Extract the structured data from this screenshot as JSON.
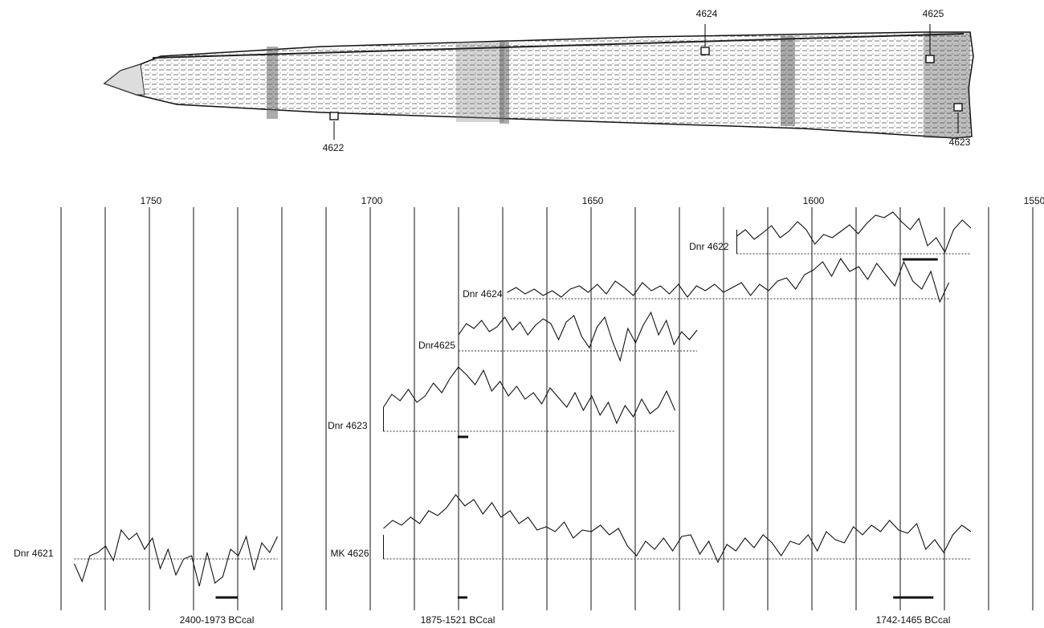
{
  "boat": {
    "samples": [
      {
        "label": "4622"
      },
      {
        "label": "4624"
      },
      {
        "label": "4625"
      },
      {
        "label": "4623"
      }
    ]
  },
  "chart_data": {
    "type": "line",
    "xlim": [
      1770,
      1550
    ],
    "xticks": [
      1750,
      1700,
      1650,
      1600,
      1550
    ],
    "gridlines": [
      1770,
      1760,
      1750,
      1740,
      1730,
      1720,
      1710,
      1700,
      1690,
      1680,
      1670,
      1660,
      1650,
      1640,
      1630,
      1620,
      1610,
      1600,
      1590,
      1580,
      1570,
      1560,
      1550
    ],
    "series": [
      {
        "name": "Dnr 4622",
        "start": 1617,
        "end": 1564,
        "values": [
          22,
          30,
          18,
          26,
          35,
          20,
          28,
          40,
          30,
          12,
          24,
          20,
          28,
          36,
          25,
          38,
          48,
          45,
          52,
          40,
          30,
          44,
          10,
          20,
          2,
          30,
          42,
          32
        ],
        "bars": [
          [
            1579.5,
            1571.5
          ]
        ]
      },
      {
        "name": "Dnr 4624",
        "start": 1669,
        "end": 1569,
        "values": [
          8,
          14,
          6,
          12,
          4,
          10,
          2,
          12,
          16,
          8,
          18,
          6,
          22,
          14,
          4,
          20,
          10,
          16,
          6,
          18,
          2,
          16,
          10,
          18,
          8,
          14,
          20,
          4,
          18,
          10,
          22,
          26,
          12,
          30,
          36,
          46,
          28,
          50,
          34,
          40,
          24,
          44,
          30,
          16,
          46,
          22,
          12,
          34,
          -4,
          20
        ],
        "bars": []
      },
      {
        "name": "Dnr4625",
        "start": 1680,
        "end": 1626,
        "values": [
          20,
          34,
          28,
          38,
          24,
          30,
          42,
          26,
          36,
          20,
          32,
          40,
          34,
          14,
          36,
          44,
          18,
          4,
          30,
          42,
          12,
          -12,
          28,
          10,
          32,
          48,
          20,
          38,
          8,
          24,
          14,
          26
        ],
        "bars": []
      },
      {
        "name": "Dnr 4623",
        "start": 1697,
        "end": 1631,
        "values": [
          30,
          46,
          38,
          52,
          36,
          44,
          60,
          48,
          66,
          80,
          70,
          58,
          76,
          50,
          62,
          44,
          56,
          40,
          48,
          34,
          54,
          42,
          30,
          48,
          26,
          44,
          20,
          36,
          10,
          32,
          18,
          40,
          22,
          30,
          50,
          26
        ],
        "bars": [
          [
            1680.2,
            1677.8
          ]
        ]
      },
      {
        "name": "MK 4626",
        "start": 1697,
        "end": 1564,
        "values": [
          38,
          48,
          42,
          52,
          44,
          60,
          54,
          64,
          80,
          66,
          74,
          56,
          70,
          52,
          60,
          44,
          52,
          36,
          40,
          34,
          46,
          26,
          36,
          34,
          42,
          30,
          38,
          16,
          4,
          22,
          12,
          26,
          10,
          28,
          30,
          6,
          22,
          -4,
          18,
          10,
          26,
          14,
          30,
          20,
          4,
          22,
          18,
          30,
          10,
          34,
          24,
          20,
          40,
          30,
          42,
          34,
          48,
          36,
          32,
          44,
          12,
          24,
          8,
          30,
          42,
          34
        ],
        "bars": [
          [
            1680.2,
            1678
          ],
          [
            1581.6,
            1572.5
          ]
        ]
      },
      {
        "name": "Dnr 4621",
        "start": 1767,
        "end": 1721,
        "values": [
          -6,
          -28,
          4,
          8,
          16,
          -2,
          36,
          24,
          32,
          12,
          26,
          -12,
          12,
          -20,
          0,
          4,
          -34,
          8,
          -30,
          -22,
          12,
          4,
          28,
          -14,
          20,
          8,
          28
        ],
        "bars": [
          [
            1735,
            1730
          ]
        ]
      }
    ],
    "annotations": [
      "2400-1973 BCcal",
      "1875-1521 BCcal",
      "1742-1465 BCcal"
    ]
  }
}
